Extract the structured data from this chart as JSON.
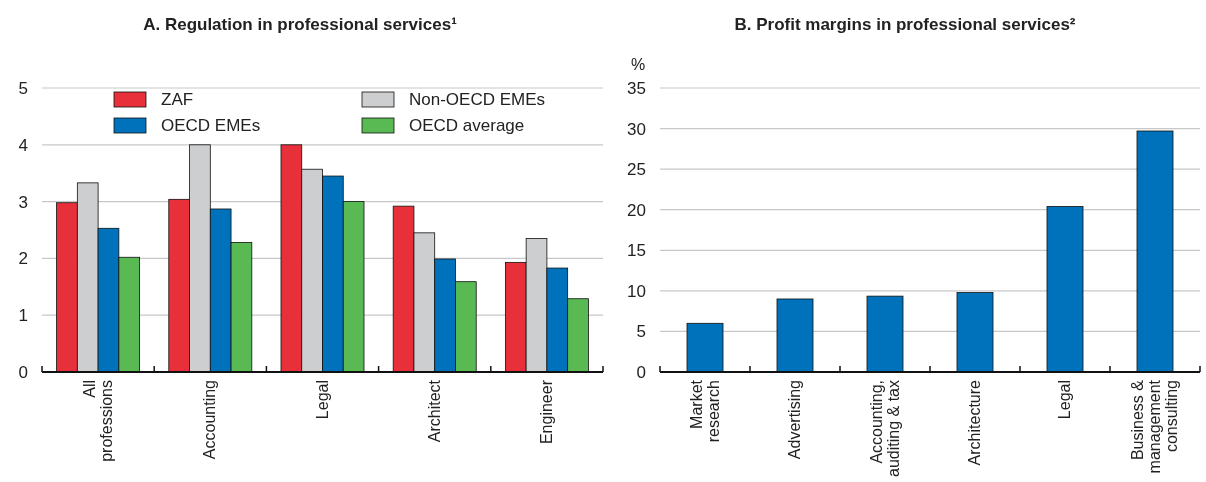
{
  "chart_data": [
    {
      "type": "bar",
      "title": "A. Regulation in professional services¹",
      "categories": [
        "All professions",
        "Accounting",
        "Legal",
        "Architect",
        "Engineer"
      ],
      "series": [
        {
          "name": "ZAF",
          "color": "#e8303a",
          "values": [
            2.98,
            3.04,
            4.0,
            2.92,
            1.93
          ]
        },
        {
          "name": "Non-OECD EMEs",
          "color": "#cdcecf",
          "values": [
            3.33,
            4.0,
            3.57,
            2.45,
            2.35
          ]
        },
        {
          "name": "OECD EMEs",
          "color": "#0072bc",
          "values": [
            2.53,
            2.87,
            3.45,
            1.99,
            1.83
          ]
        },
        {
          "name": "OECD average",
          "color": "#59b953",
          "values": [
            2.02,
            2.28,
            3.0,
            1.59,
            1.29
          ]
        }
      ],
      "ylim": [
        0,
        5
      ],
      "yticks": [
        0,
        1,
        2,
        3,
        4,
        5
      ],
      "grid": "y",
      "legend": "top"
    },
    {
      "type": "bar",
      "title": "B. Profit margins in professional services²",
      "ylabel": "%",
      "categories": [
        "Market research",
        "Advertising",
        "Accounting, auditing & tax",
        "Architecture",
        "Legal",
        "Business & management consulting"
      ],
      "series": [
        {
          "color": "#0072bc",
          "values": [
            6.0,
            9.0,
            9.35,
            9.8,
            20.4,
            29.7
          ]
        }
      ],
      "ylim": [
        0,
        35
      ],
      "yticks": [
        0,
        5,
        10,
        15,
        20,
        25,
        30,
        35
      ],
      "grid": "y"
    }
  ]
}
